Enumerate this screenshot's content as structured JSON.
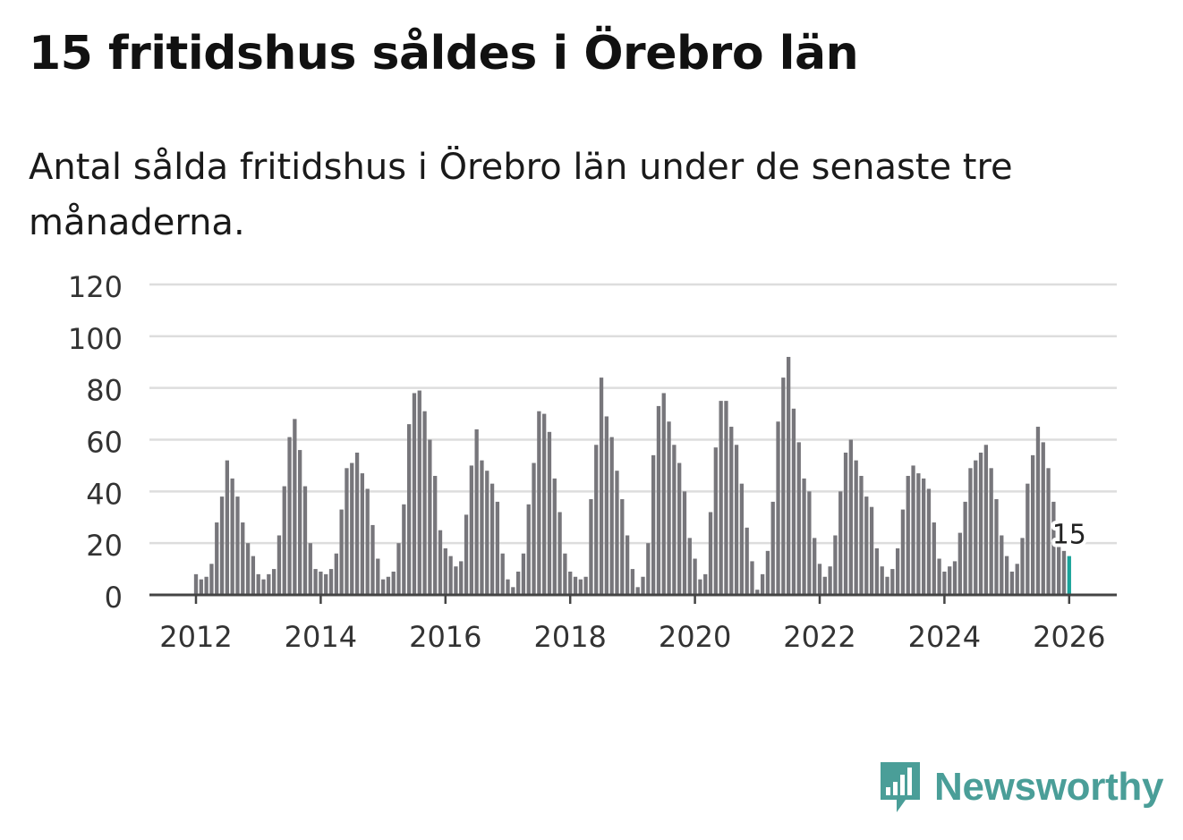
{
  "title": "15 fritidshus såldes i Örebro län",
  "subtitle": "Antal sålda fritidshus i Örebro län under de senaste tre månaderna.",
  "brand": {
    "name": "Newsworthy",
    "icon": "bar-chart-speech-icon"
  },
  "colors": {
    "bar": "#77767b",
    "highlight": "#1aa39a",
    "grid": "#dddddd",
    "axis": "#444444",
    "brand": "#4a9e98"
  },
  "chart_data": {
    "type": "bar",
    "title": "15 fritidshus såldes i Örebro län",
    "subtitle": "Antal sålda fritidshus i Örebro län under de senaste tre månaderna.",
    "xlabel": "",
    "ylabel": "",
    "ylim": [
      0,
      120
    ],
    "yticks": [
      "0",
      "20",
      "40",
      "60",
      "80",
      "100",
      "120"
    ],
    "xticks": [
      {
        "label": "2012",
        "year": 2012
      },
      {
        "label": "2014",
        "year": 2014
      },
      {
        "label": "2016",
        "year": 2016
      },
      {
        "label": "2018",
        "year": 2018
      },
      {
        "label": "2020",
        "year": 2020
      },
      {
        "label": "2022",
        "year": 2022
      },
      {
        "label": "2024",
        "year": 2024
      },
      {
        "label": "2026",
        "year": 2026
      }
    ],
    "start": "2012-01",
    "end": "2026-01",
    "grid": true,
    "highlight": {
      "label": "15",
      "index": 168,
      "value": 15
    },
    "series": [
      {
        "name": "Antal sålda fritidshus",
        "values": [
          8,
          6,
          7,
          12,
          28,
          38,
          52,
          45,
          38,
          28,
          20,
          15,
          8,
          6,
          8,
          10,
          23,
          42,
          61,
          68,
          56,
          42,
          20,
          10,
          9,
          8,
          10,
          16,
          33,
          49,
          51,
          55,
          47,
          41,
          27,
          14,
          6,
          7,
          9,
          20,
          35,
          66,
          78,
          79,
          71,
          60,
          46,
          25,
          18,
          15,
          11,
          13,
          31,
          50,
          64,
          52,
          48,
          43,
          36,
          16,
          6,
          3,
          9,
          16,
          35,
          51,
          71,
          70,
          63,
          45,
          32,
          16,
          9,
          7,
          6,
          7,
          37,
          58,
          84,
          69,
          61,
          48,
          37,
          23,
          10,
          3,
          7,
          20,
          54,
          73,
          78,
          67,
          58,
          51,
          40,
          22,
          14,
          6,
          8,
          32,
          57,
          75,
          75,
          65,
          58,
          43,
          26,
          13,
          2,
          8,
          17,
          36,
          67,
          84,
          92,
          72,
          59,
          45,
          40,
          22,
          12,
          7,
          11,
          23,
          40,
          55,
          60,
          52,
          46,
          38,
          34,
          18,
          11,
          7,
          10,
          18,
          33,
          46,
          50,
          47,
          45,
          41,
          28,
          14,
          9,
          11,
          13,
          24,
          36,
          49,
          52,
          55,
          58,
          49,
          37,
          23,
          15,
          9,
          12,
          22,
          43,
          54,
          65,
          59,
          49,
          36,
          20,
          17,
          15
        ]
      }
    ]
  }
}
